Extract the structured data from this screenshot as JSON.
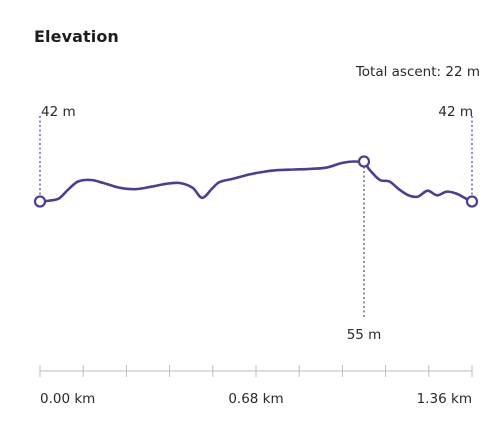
{
  "title": "Elevation",
  "total_ascent": "Total ascent: 22 m",
  "colors": {
    "line": "#4b3f8f",
    "marker_fill": "#ffffff",
    "axis": "#bdbdbd",
    "text": "#2a2a2e"
  },
  "chart_data": {
    "type": "line",
    "title": "Elevation",
    "xlabel": "",
    "ylabel": "",
    "x_unit": "km",
    "y_unit": "m",
    "xlim": [
      0,
      1.36
    ],
    "x_ticks": [
      "0.00 km",
      "0.68 km",
      "1.36 km"
    ],
    "series": [
      {
        "x": [
          0.0,
          0.03,
          0.06,
          0.09,
          0.12,
          0.16,
          0.2,
          0.25,
          0.3,
          0.35,
          0.4,
          0.44,
          0.48,
          0.51,
          0.54,
          0.56,
          0.58,
          0.6,
          0.63,
          0.66,
          0.7,
          0.75,
          0.8,
          0.85,
          0.9,
          0.95,
          0.99,
          1.02,
          1.04,
          1.07,
          1.1,
          1.13,
          1.16,
          1.19,
          1.22,
          1.25,
          1.28,
          1.31,
          1.34,
          1.36
        ],
        "y": [
          42,
          42.3,
          43,
          46,
          48.5,
          49,
          48,
          46.5,
          46,
          46.8,
          47.8,
          48,
          46.5,
          43.2,
          46,
          48,
          48.8,
          49.2,
          50,
          50.8,
          51.6,
          52.2,
          52.4,
          52.6,
          53,
          54.5,
          55,
          54.5,
          52,
          49,
          48.5,
          46,
          44,
          43.6,
          45.5,
          44,
          45.2,
          44.6,
          43,
          42
        ]
      }
    ],
    "markers": [
      {
        "x": 0.0,
        "y": 42,
        "label": "42 m"
      },
      {
        "x": 1.02,
        "y": 55,
        "label": "55 m"
      },
      {
        "x": 1.36,
        "y": 42,
        "label": "42 m"
      }
    ]
  }
}
